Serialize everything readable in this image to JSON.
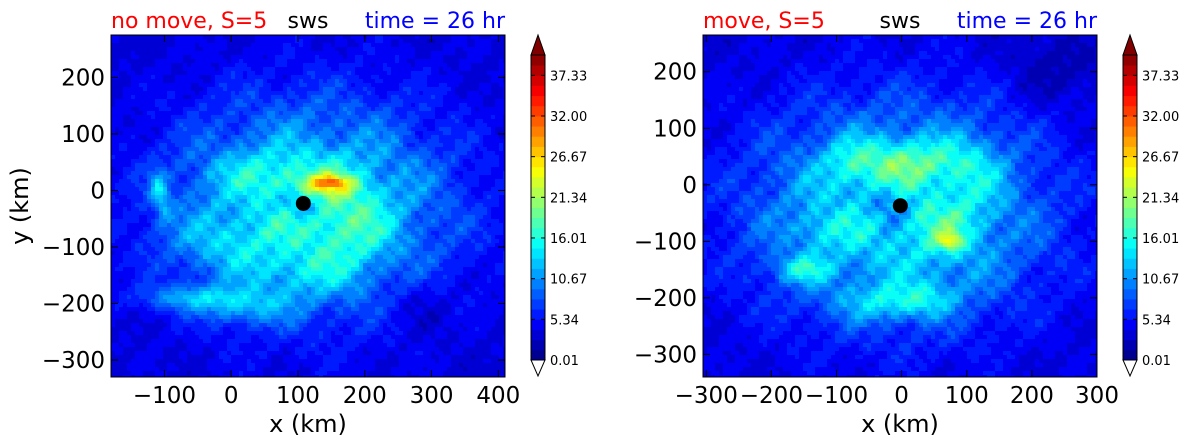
{
  "colors": {
    "colormap": "jet",
    "title_left": "#ff0000",
    "title_center": "#000000",
    "title_right": "#0000ff",
    "storm_center_marker": "#000000"
  },
  "chart_data": [
    {
      "type": "contourf",
      "title_left": "no move, S=5",
      "title_center": "sws",
      "title_right": "time = 26 hr",
      "xlabel": "x (km)",
      "ylabel": "y (km)",
      "xlim": [
        -180,
        410
      ],
      "ylim": [
        -330,
        275
      ],
      "xticks": [
        -100,
        0,
        100,
        200,
        300,
        400
      ],
      "xtick_labels": [
        "−100",
        "0",
        "100",
        "200",
        "300",
        "400"
      ],
      "yticks": [
        -300,
        -200,
        -100,
        0,
        100,
        200
      ],
      "ytick_labels": [
        "−300",
        "−200",
        "−100",
        "0",
        "100",
        "200"
      ],
      "colorbar": {
        "min": 0.01,
        "max": 40.0,
        "extend": "both",
        "tick_values": [
          0.01,
          5.34,
          10.67,
          16.01,
          21.34,
          26.67,
          32.0,
          37.33
        ],
        "tick_labels": [
          "0.01",
          "5.34",
          "10.67",
          "16.01",
          "21.34",
          "26.67",
          "32.00",
          "37.33"
        ]
      },
      "storm_center": {
        "x": 108,
        "y": -23
      },
      "field": {
        "background": 3.5,
        "vortex": {
          "x": 120,
          "y": -30,
          "rx": 300,
          "ry": 265,
          "amp": 10.5
        },
        "eye": {
          "x": 105,
          "y": -25,
          "r": 25,
          "amp": 4
        },
        "features": [
          {
            "x": 145,
            "y": 10,
            "sx": 45,
            "sy": 20,
            "amp": 9
          },
          {
            "x": 150,
            "y": 15,
            "sx": 22,
            "sy": 9,
            "amp": 6
          },
          {
            "x": 175,
            "y": -60,
            "sx": 60,
            "sy": 80,
            "amp": 5
          },
          {
            "x": 60,
            "y": 30,
            "sx": 90,
            "sy": 40,
            "amp": 4
          },
          {
            "x": -110,
            "y": 5,
            "sx": 12,
            "sy": 30,
            "amp": 6
          },
          {
            "x": -100,
            "y": -30,
            "sx": 12,
            "sy": 30,
            "amp": 4
          },
          {
            "x": -55,
            "y": -190,
            "sx": 85,
            "sy": 22,
            "amp": 6
          },
          {
            "x": 20,
            "y": -210,
            "sx": 70,
            "sy": 28,
            "amp": 4.5
          },
          {
            "x": -5,
            "y": -90,
            "sx": 90,
            "sy": 50,
            "amp": 3.5
          },
          {
            "x": 100,
            "y": -150,
            "sx": 80,
            "sy": 40,
            "amp": 3
          },
          {
            "x": 280,
            "y": -200,
            "sx": 60,
            "sy": 60,
            "amp": -2
          }
        ]
      }
    },
    {
      "type": "contourf",
      "title_left": "move, S=5",
      "title_center": "sws",
      "title_right": "time = 26 hr",
      "xlabel": "x (km)",
      "ylabel": "",
      "xlim": [
        -305,
        300
      ],
      "ylim": [
        -340,
        265
      ],
      "xticks": [
        -300,
        -200,
        -100,
        0,
        100,
        200,
        300
      ],
      "xtick_labels": [
        "−300",
        "−200",
        "−100",
        "0",
        "100",
        "200",
        "300"
      ],
      "yticks": [
        -300,
        -200,
        -100,
        0,
        100,
        200
      ],
      "ytick_labels": [
        "−300",
        "−200",
        "−100",
        "0",
        "100",
        "200"
      ],
      "colorbar": {
        "min": 0.01,
        "max": 40.0,
        "extend": "both",
        "tick_values": [
          0.01,
          5.34,
          10.67,
          16.01,
          21.34,
          26.67,
          32.0,
          37.33
        ],
        "tick_labels": [
          "0.01",
          "5.34",
          "10.67",
          "16.01",
          "21.34",
          "26.67",
          "32.00",
          "37.33"
        ]
      },
      "storm_center": {
        "x": -2,
        "y": -37
      },
      "field": {
        "background": 3.5,
        "vortex": {
          "x": -5,
          "y": -50,
          "rx": 320,
          "ry": 275,
          "amp": 10.5
        },
        "eye": {
          "x": -20,
          "y": -35,
          "r": 32,
          "amp": 4
        },
        "features": [
          {
            "x": 10,
            "y": 40,
            "sx": 90,
            "sy": 40,
            "amp": 7
          },
          {
            "x": 75,
            "y": -100,
            "sx": 18,
            "sy": 14,
            "amp": 9
          },
          {
            "x": 70,
            "y": -80,
            "sx": 55,
            "sy": 50,
            "amp": 4
          },
          {
            "x": -150,
            "y": -150,
            "sx": 40,
            "sy": 22,
            "amp": 7
          },
          {
            "x": -120,
            "y": -80,
            "sx": 45,
            "sy": 35,
            "amp": 3
          },
          {
            "x": -30,
            "y": -210,
            "sx": 70,
            "sy": 30,
            "amp": 5
          },
          {
            "x": 40,
            "y": -200,
            "sx": 50,
            "sy": 30,
            "amp": 4.5
          },
          {
            "x": 110,
            "y": 20,
            "sx": 45,
            "sy": 70,
            "amp": 3
          },
          {
            "x": -80,
            "y": 40,
            "sx": 40,
            "sy": 40,
            "amp": 3
          },
          {
            "x": 230,
            "y": 200,
            "sx": 70,
            "sy": 60,
            "amp": -2
          }
        ]
      }
    }
  ]
}
